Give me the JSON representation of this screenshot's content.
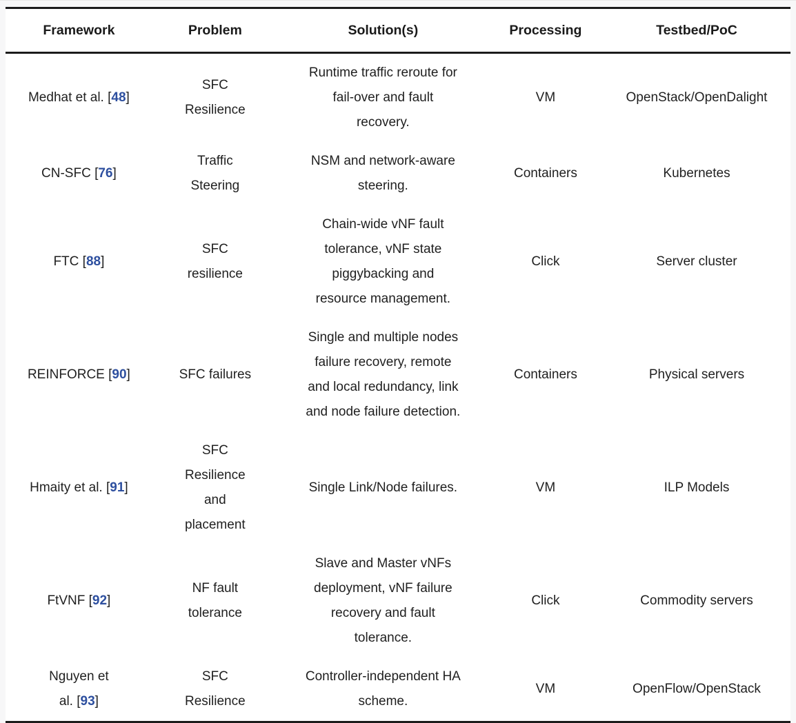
{
  "page": {
    "background_color": "#f7f7f8",
    "table_background_color": "#ffffff",
    "rule_color": "#1b1b1b",
    "text_color": "#1f1f1f",
    "citation_link_color": "#2d4f9f"
  },
  "table": {
    "columns": [
      "Framework",
      "Problem",
      "Solution(s)",
      "Processing",
      "Testbed/PoC"
    ],
    "rows": [
      {
        "framework": {
          "prefix": "Medhat et al. [",
          "cite": "48",
          "suffix": "]"
        },
        "problem": "SFC\nResilience",
        "solution": "Runtime traffic reroute for\nfail-over and fault\nrecovery.",
        "processing": "VM",
        "testbed": "OpenStack/OpenDalight"
      },
      {
        "framework": {
          "prefix": "CN-SFC [",
          "cite": "76",
          "suffix": "]"
        },
        "problem": "Traffic\nSteering",
        "solution": "NSM and network-aware\nsteering.",
        "processing": "Containers",
        "testbed": "Kubernetes"
      },
      {
        "framework": {
          "prefix": "FTC [",
          "cite": "88",
          "suffix": "]"
        },
        "problem": "SFC\nresilience",
        "solution": "Chain-wide vNF fault\ntolerance, vNF state\npiggybacking and\nresource management.",
        "processing": "Click",
        "testbed": "Server cluster"
      },
      {
        "framework": {
          "prefix": "REINFORCE [",
          "cite": "90",
          "suffix": "]"
        },
        "problem": "SFC failures",
        "solution": "Single and multiple nodes\nfailure recovery, remote\nand local redundancy, link\nand node failure detection.",
        "processing": "Containers",
        "testbed": "Physical servers"
      },
      {
        "framework": {
          "prefix": "Hmaity et al. [",
          "cite": "91",
          "suffix": "]"
        },
        "problem": "SFC\nResilience\nand\nplacement",
        "solution": "Single Link/Node failures.",
        "processing": "VM",
        "testbed": "ILP Models"
      },
      {
        "framework": {
          "prefix": "FtVNF [",
          "cite": "92",
          "suffix": "]"
        },
        "problem": "NF fault\ntolerance",
        "solution": "Slave and Master vNFs\ndeployment, vNF failure\nrecovery and fault\ntolerance.",
        "processing": "Click",
        "testbed": "Commodity servers"
      },
      {
        "framework": {
          "prefix": "Nguyen et\nal. [",
          "cite": "93",
          "suffix": "]"
        },
        "problem": "SFC\nResilience",
        "solution": "Controller-independent HA\nscheme.",
        "processing": "VM",
        "testbed": "OpenFlow/OpenStack"
      }
    ]
  }
}
